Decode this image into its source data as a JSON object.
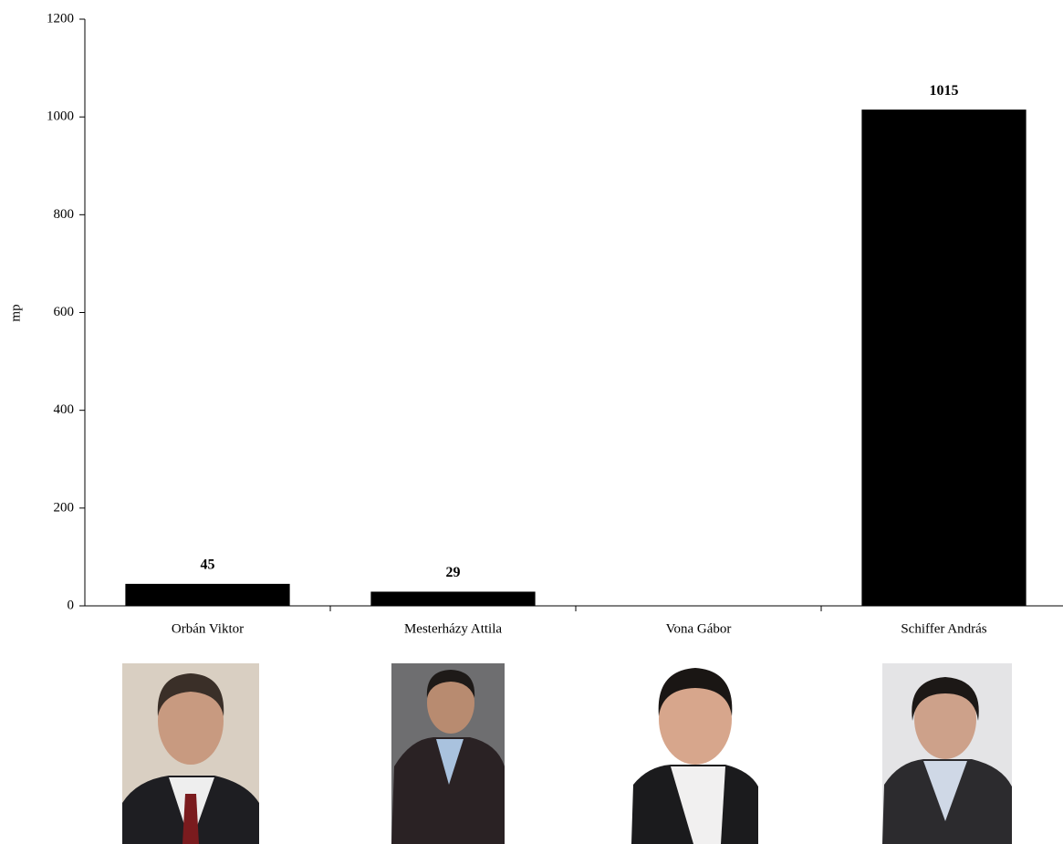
{
  "chart_data": {
    "type": "bar",
    "ylabel": "mp",
    "categories": [
      "Orbán Viktor",
      "Mesterházy Attila",
      "Vona Gábor",
      "Schiffer András"
    ],
    "values": [
      45,
      29,
      null,
      1015
    ],
    "color": "#000000",
    "ylim": [
      0,
      1200
    ],
    "yticks": [
      0,
      200,
      400,
      600,
      800,
      1000,
      1200
    ],
    "grid": false
  }
}
